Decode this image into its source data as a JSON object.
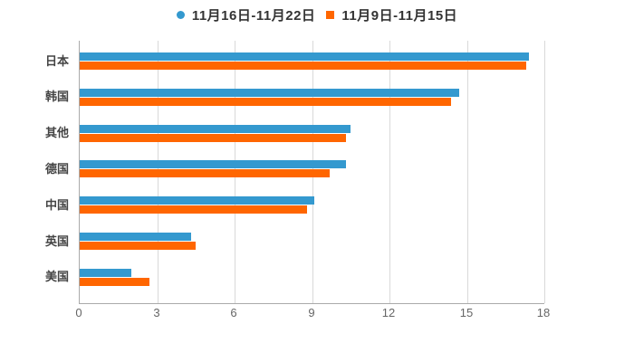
{
  "page": {
    "background": "#ffffff"
  },
  "legend": {
    "items": [
      {
        "label": "11月16日-11月22日",
        "marker": "circle",
        "color": "#3499cf"
      },
      {
        "label": "11月9日-11月15日",
        "marker": "square",
        "color": "#ff6600"
      }
    ]
  },
  "chart_data": {
    "type": "bar",
    "orientation": "horizontal",
    "title": "",
    "xlabel": "",
    "ylabel": "",
    "categories": [
      "日本",
      "韩国",
      "其他",
      "德国",
      "中国",
      "英国",
      "美国"
    ],
    "series": [
      {
        "name": "11月16日-11月22日",
        "color": "#3499cf",
        "values": [
          17.4,
          14.7,
          10.5,
          10.3,
          9.1,
          4.3,
          2.0
        ]
      },
      {
        "name": "11月9日-11月15日",
        "color": "#ff6600",
        "values": [
          17.3,
          14.4,
          10.3,
          9.7,
          8.8,
          4.5,
          2.7
        ]
      }
    ],
    "x_ticks": [
      0,
      3,
      6,
      9,
      12,
      15,
      18
    ],
    "xlim": [
      0,
      18
    ],
    "grid": true,
    "legend_position": "top-center"
  },
  "style_colors": {
    "gridline": "#d9d9d9",
    "axis_line": "#aaaaaa",
    "tick_label": "#666666",
    "category_label": "#444444",
    "legend_text": "#333333"
  }
}
